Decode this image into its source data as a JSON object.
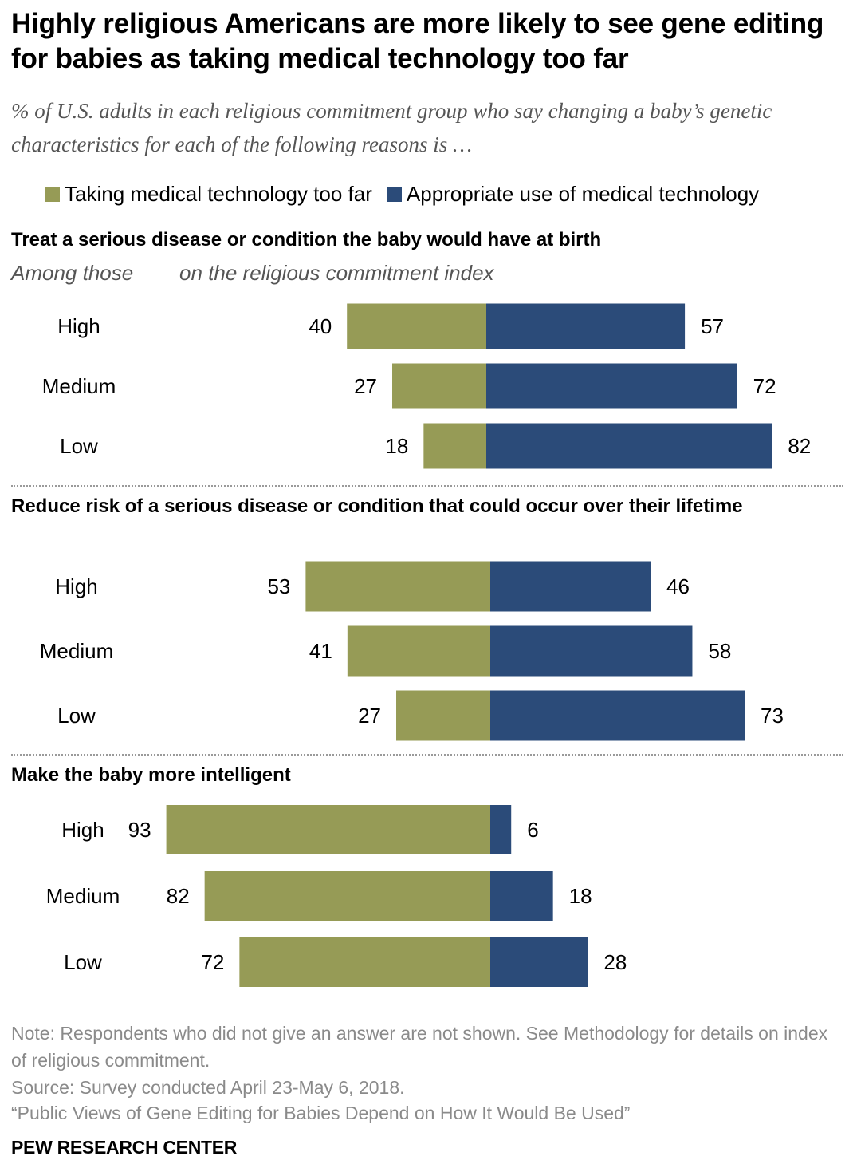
{
  "title": "Highly religious Americans are more likely to see gene editing for babies as taking medical technology too far",
  "subtitle": "% of U.S. adults in each religious commitment group who say changing a baby’s genetic characteristics for each of the following reasons is …",
  "colors": {
    "too_far": "#969b56",
    "appropriate": "#2b4b79"
  },
  "legend": [
    {
      "label": "Taking medical technology too far"
    },
    {
      "label": "Appropriate use of medical technology"
    }
  ],
  "panel_note": "Among those ___ on the religious commitment index",
  "chart_data": [
    {
      "type": "bar",
      "title": "Treat a serious disease or condition the baby would have at birth",
      "categories": [
        "High",
        "Medium",
        "Low"
      ],
      "series": [
        {
          "name": "Taking medical technology too far",
          "values": [
            40,
            27,
            18
          ]
        },
        {
          "name": "Appropriate use of medical technology",
          "values": [
            57,
            72,
            82
          ]
        }
      ]
    },
    {
      "type": "bar",
      "title": "Reduce risk of a serious disease or condition that could occur over their lifetime",
      "categories": [
        "High",
        "Medium",
        "Low"
      ],
      "series": [
        {
          "name": "Taking medical technology too far",
          "values": [
            53,
            41,
            27
          ]
        },
        {
          "name": "Appropriate use of medical technology",
          "values": [
            46,
            58,
            73
          ]
        }
      ]
    },
    {
      "type": "bar",
      "title": "Make the baby more intelligent",
      "categories": [
        "High",
        "Medium",
        "Low"
      ],
      "series": [
        {
          "name": "Taking medical technology too far",
          "values": [
            93,
            82,
            72
          ]
        },
        {
          "name": "Appropriate use of medical technology",
          "values": [
            6,
            18,
            28
          ]
        }
      ]
    }
  ],
  "footer": {
    "note": "Note: Respondents who did not give an answer are not shown. See Methodology for details on index of religious commitment.",
    "source": "Source: Survey conducted April 23-May 6, 2018.",
    "report": "“Public Views of Gene Editing for Babies Depend on How It Would Be Used”",
    "brand": "PEW RESEARCH CENTER"
  }
}
